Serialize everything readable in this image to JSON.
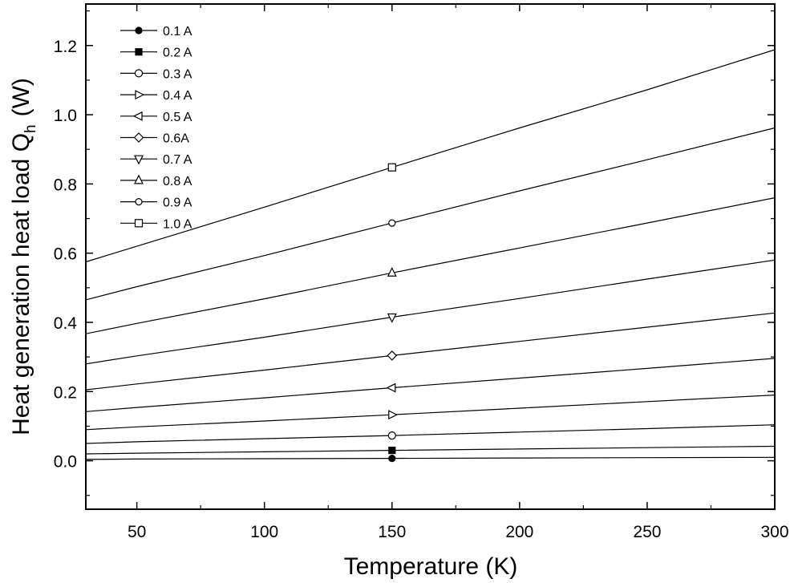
{
  "chart_data": {
    "type": "line",
    "xlabel": "Temperature (K)",
    "ylabel": "Heat generation heat load Q",
    "ylabel_subscript": "h",
    "ylabel_unit": "(W)",
    "xlim": [
      30,
      300
    ],
    "ylim": [
      -0.14,
      1.32
    ],
    "xticks": [
      50,
      100,
      150,
      200,
      250,
      300
    ],
    "yticks": [
      0.0,
      0.2,
      0.4,
      0.6,
      0.8,
      1.0,
      1.2
    ],
    "xtick_labels": [
      "50",
      "100",
      "150",
      "200",
      "250",
      "300"
    ],
    "ytick_labels": [
      "0.0",
      "0.2",
      "0.4",
      "0.6",
      "0.8",
      "1.0",
      "1.2"
    ],
    "grid": false,
    "legend_position": "top-left",
    "marker_x": 150,
    "x": [
      30,
      50,
      100,
      150,
      200,
      250,
      300
    ],
    "series": [
      {
        "name": "0.1 A",
        "marker": "circle-filled",
        "values": [
          0.004,
          0.005,
          0.006,
          0.007,
          0.008,
          0.009,
          0.01
        ]
      },
      {
        "name": "0.2 A",
        "marker": "square-filled",
        "values": [
          0.02,
          0.022,
          0.026,
          0.03,
          0.034,
          0.038,
          0.042
        ]
      },
      {
        "name": "0.3 A",
        "marker": "circle-open",
        "values": [
          0.05,
          0.055,
          0.064,
          0.073,
          0.083,
          0.093,
          0.104
        ]
      },
      {
        "name": "0.4 A",
        "marker": "triangle-right",
        "values": [
          0.09,
          0.098,
          0.115,
          0.133,
          0.152,
          0.171,
          0.19
        ]
      },
      {
        "name": "0.5 A",
        "marker": "triangle-left",
        "values": [
          0.142,
          0.154,
          0.182,
          0.211,
          0.239,
          0.267,
          0.296
        ]
      },
      {
        "name": "0.6A",
        "marker": "diamond-open",
        "values": [
          0.205,
          0.222,
          0.262,
          0.304,
          0.345,
          0.386,
          0.427
        ]
      },
      {
        "name": "0.7 A",
        "marker": "triangle-down",
        "values": [
          0.28,
          0.303,
          0.357,
          0.415,
          0.469,
          0.525,
          0.58
        ]
      },
      {
        "name": "0.8 A",
        "marker": "triangle-up",
        "values": [
          0.367,
          0.397,
          0.468,
          0.543,
          0.615,
          0.687,
          0.76
        ]
      },
      {
        "name": "0.9 A",
        "marker": "circle-open-small",
        "values": [
          0.465,
          0.503,
          0.593,
          0.687,
          0.78,
          0.87,
          0.962
        ]
      },
      {
        "name": "1.0 A",
        "marker": "square-open",
        "values": [
          0.575,
          0.62,
          0.733,
          0.848,
          0.962,
          1.072,
          1.188
        ]
      }
    ]
  }
}
